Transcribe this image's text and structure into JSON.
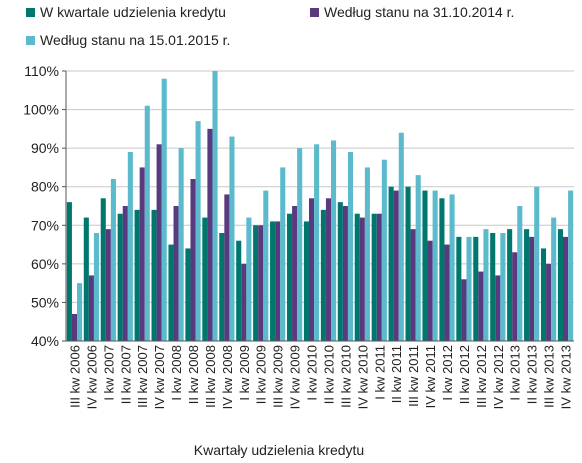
{
  "chart_data": {
    "type": "bar",
    "xlabel": "Kwartały udzielenia kredytu",
    "ylabel": "",
    "ylim": [
      0.4,
      1.1
    ],
    "yticks": [
      "40%",
      "50%",
      "60%",
      "70%",
      "80%",
      "90%",
      "100%",
      "110%"
    ],
    "grid": true,
    "legend_position": "top",
    "categories": [
      "III kw 2006",
      "IV kw 2006",
      "I kw 2007",
      "II kw 2007",
      "III kw 2007",
      "IV kw 2007",
      "I kw 2008",
      "II kw 2008",
      "III kw 2008",
      "IV kw 2008",
      "I kw 2009",
      "II kw 2009",
      "III kw 2009",
      "IV kw 2009",
      "I kw 2010",
      "II kw 2010",
      "III kw 2010",
      "IV kw 2010",
      "I kw 2011",
      "II kw 2011",
      "III kw 2011",
      "IV kw 2011",
      "I kw 2012",
      "II kw 2012",
      "III kw 2012",
      "IV kw 2012",
      "I kw 2013",
      "II kw 2013",
      "III kw 2013",
      "IV kw 2013"
    ],
    "series": [
      {
        "name": "W kwartale udzielenia kredytu",
        "color": "#00776d",
        "values": [
          0.76,
          0.72,
          0.77,
          0.73,
          0.74,
          0.74,
          0.65,
          0.64,
          0.72,
          0.68,
          0.66,
          0.7,
          0.71,
          0.73,
          0.71,
          0.74,
          0.76,
          0.73,
          0.73,
          0.8,
          0.8,
          0.79,
          0.77,
          0.67,
          0.67,
          0.68,
          0.69,
          0.69,
          0.64,
          0.69
        ]
      },
      {
        "name": "Według stanu na 31.10.2014 r.",
        "color": "#5a3a7e",
        "values": [
          0.47,
          0.57,
          0.69,
          0.75,
          0.85,
          0.91,
          0.75,
          0.82,
          0.95,
          0.78,
          0.6,
          0.7,
          0.71,
          0.75,
          0.77,
          0.77,
          0.75,
          0.72,
          0.73,
          0.79,
          0.69,
          0.66,
          0.65,
          0.56,
          0.58,
          0.57,
          0.63,
          0.67,
          0.6,
          0.67
        ]
      },
      {
        "name": "Według stanu na 15.01.2015 r.",
        "color": "#5bbbcc",
        "values": [
          0.55,
          0.68,
          0.82,
          0.89,
          1.01,
          1.08,
          0.9,
          0.97,
          1.1,
          0.93,
          0.72,
          0.79,
          0.85,
          0.9,
          0.91,
          0.92,
          0.89,
          0.85,
          0.87,
          0.94,
          0.83,
          0.79,
          0.78,
          0.67,
          0.69,
          0.68,
          0.75,
          0.8,
          0.72,
          0.79
        ]
      }
    ]
  }
}
